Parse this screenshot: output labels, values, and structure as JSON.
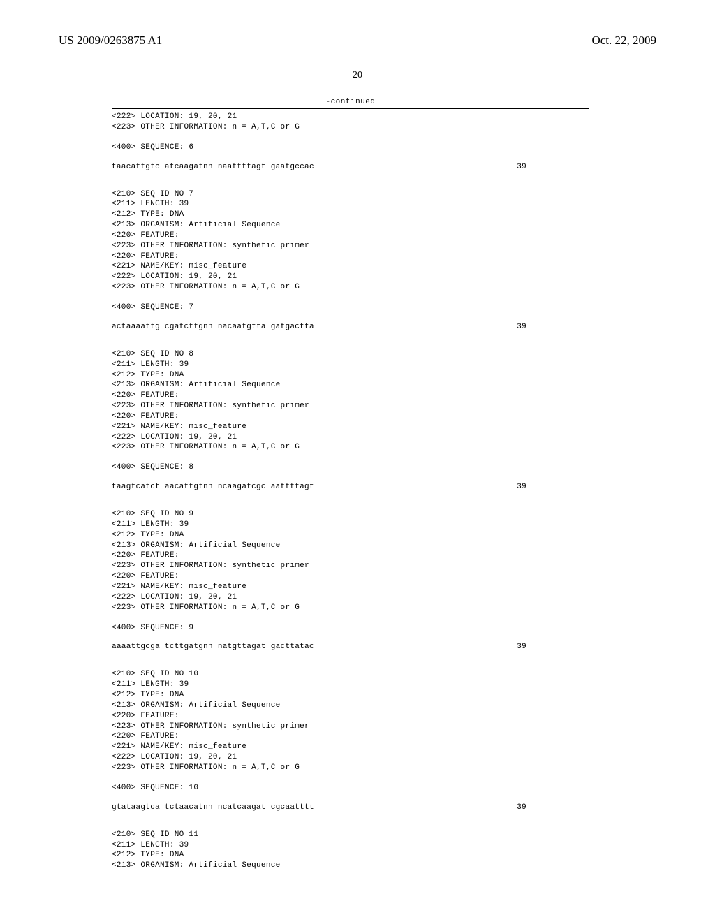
{
  "header": {
    "left": "US 2009/0263875 A1",
    "right": "Oct. 22, 2009"
  },
  "page_number": "20",
  "continued_label": "-continued",
  "entries": [
    {
      "pre_tags": [
        "<222> LOCATION: 19, 20, 21",
        "<223> OTHER INFORMATION: n = A,T,C or G"
      ],
      "seq_label": "<400> SEQUENCE: 6",
      "sequence": "taacattgtc atcaagatnn naattttagt gaatgccac",
      "length": "39"
    },
    {
      "tags": [
        "<210> SEQ ID NO 7",
        "<211> LENGTH: 39",
        "<212> TYPE: DNA",
        "<213> ORGANISM: Artificial Sequence",
        "<220> FEATURE:",
        "<223> OTHER INFORMATION: synthetic primer",
        "<220> FEATURE:",
        "<221> NAME/KEY: misc_feature",
        "<222> LOCATION: 19, 20, 21",
        "<223> OTHER INFORMATION: n = A,T,C or G"
      ],
      "seq_label": "<400> SEQUENCE: 7",
      "sequence": "actaaaattg cgatcttgnn nacaatgtta gatgactta",
      "length": "39"
    },
    {
      "tags": [
        "<210> SEQ ID NO 8",
        "<211> LENGTH: 39",
        "<212> TYPE: DNA",
        "<213> ORGANISM: Artificial Sequence",
        "<220> FEATURE:",
        "<223> OTHER INFORMATION: synthetic primer",
        "<220> FEATURE:",
        "<221> NAME/KEY: misc_feature",
        "<222> LOCATION: 19, 20, 21",
        "<223> OTHER INFORMATION: n = A,T,C or G"
      ],
      "seq_label": "<400> SEQUENCE: 8",
      "sequence": "taagtcatct aacattgtnn ncaagatcgc aattttagt",
      "length": "39"
    },
    {
      "tags": [
        "<210> SEQ ID NO 9",
        "<211> LENGTH: 39",
        "<212> TYPE: DNA",
        "<213> ORGANISM: Artificial Sequence",
        "<220> FEATURE:",
        "<223> OTHER INFORMATION: synthetic primer",
        "<220> FEATURE:",
        "<221> NAME/KEY: misc_feature",
        "<222> LOCATION: 19, 20, 21",
        "<223> OTHER INFORMATION: n = A,T,C or G"
      ],
      "seq_label": "<400> SEQUENCE: 9",
      "sequence": "aaaattgcga tcttgatgnn natgttagat gacttatac",
      "length": "39"
    },
    {
      "tags": [
        "<210> SEQ ID NO 10",
        "<211> LENGTH: 39",
        "<212> TYPE: DNA",
        "<213> ORGANISM: Artificial Sequence",
        "<220> FEATURE:",
        "<223> OTHER INFORMATION: synthetic primer",
        "<220> FEATURE:",
        "<221> NAME/KEY: misc_feature",
        "<222> LOCATION: 19, 20, 21",
        "<223> OTHER INFORMATION: n = A,T,C or G"
      ],
      "seq_label": "<400> SEQUENCE: 10",
      "sequence": "gtataagtca tctaacatnn ncatcaagat cgcaatttt",
      "length": "39"
    },
    {
      "tags": [
        "<210> SEQ ID NO 11",
        "<211> LENGTH: 39",
        "<212> TYPE: DNA",
        "<213> ORGANISM: Artificial Sequence"
      ]
    }
  ]
}
